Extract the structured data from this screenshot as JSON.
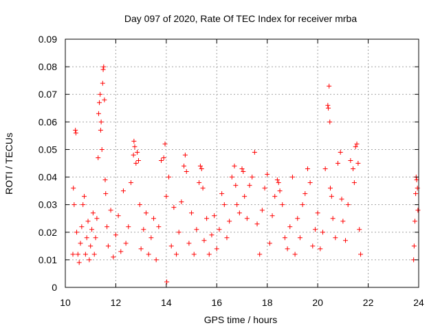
{
  "chart_data": {
    "type": "scatter",
    "title": "Day 097 of 2020, Rate Of TEC Index for receiver mrba",
    "xlabel": "GPS time / hours",
    "ylabel": "ROTI / TECUs",
    "xlim": [
      10,
      24
    ],
    "ylim": [
      0,
      0.09
    ],
    "x_ticks": [
      10,
      12,
      14,
      16,
      18,
      20,
      22,
      24
    ],
    "y_ticks": [
      0,
      0.01,
      0.02,
      0.03,
      0.04,
      0.05,
      0.06,
      0.07,
      0.08,
      0.09
    ],
    "x_tick_labels": [
      "10",
      "12",
      "14",
      "16",
      "18",
      "20",
      "22",
      "24"
    ],
    "y_tick_labels": [
      "0",
      "0.01",
      "0.02",
      "0.03",
      "0.04",
      "0.05",
      "0.06",
      "0.07",
      "0.08",
      "0.09"
    ],
    "grid": true,
    "legend": "none",
    "marker": "plus",
    "color": "#ff0000",
    "series": [
      {
        "points": [
          [
            10.3,
            0.012
          ],
          [
            10.32,
            0.036
          ],
          [
            10.35,
            0.03
          ],
          [
            10.4,
            0.057
          ],
          [
            10.42,
            0.056
          ],
          [
            10.45,
            0.02
          ],
          [
            10.5,
            0.012
          ],
          [
            10.55,
            0.009
          ],
          [
            10.6,
            0.016
          ],
          [
            10.65,
            0.022
          ],
          [
            10.7,
            0.03
          ],
          [
            10.75,
            0.033
          ],
          [
            10.8,
            0.012
          ],
          [
            10.85,
            0.018
          ],
          [
            10.9,
            0.024
          ],
          [
            10.95,
            0.01
          ],
          [
            11.0,
            0.015
          ],
          [
            11.05,
            0.021
          ],
          [
            11.1,
            0.027
          ],
          [
            11.15,
            0.012
          ],
          [
            11.2,
            0.018
          ],
          [
            11.25,
            0.025
          ],
          [
            11.3,
            0.047
          ],
          [
            11.32,
            0.063
          ],
          [
            11.35,
            0.067
          ],
          [
            11.38,
            0.07
          ],
          [
            11.4,
            0.057
          ],
          [
            11.42,
            0.06
          ],
          [
            11.45,
            0.05
          ],
          [
            11.48,
            0.074
          ],
          [
            11.5,
            0.079
          ],
          [
            11.52,
            0.08
          ],
          [
            11.55,
            0.068
          ],
          [
            11.58,
            0.039
          ],
          [
            11.6,
            0.034
          ],
          [
            11.65,
            0.022
          ],
          [
            11.7,
            0.015
          ],
          [
            11.8,
            0.028
          ],
          [
            11.9,
            0.011
          ],
          [
            12.0,
            0.019
          ],
          [
            12.1,
            0.026
          ],
          [
            12.2,
            0.013
          ],
          [
            12.3,
            0.035
          ],
          [
            12.4,
            0.016
          ],
          [
            12.5,
            0.022
          ],
          [
            12.6,
            0.038
          ],
          [
            12.7,
            0.048
          ],
          [
            12.72,
            0.053
          ],
          [
            12.75,
            0.051
          ],
          [
            12.8,
            0.045
          ],
          [
            12.85,
            0.049
          ],
          [
            12.9,
            0.046
          ],
          [
            12.95,
            0.03
          ],
          [
            13.0,
            0.014
          ],
          [
            13.1,
            0.021
          ],
          [
            13.2,
            0.027
          ],
          [
            13.3,
            0.012
          ],
          [
            13.4,
            0.018
          ],
          [
            13.5,
            0.025
          ],
          [
            13.6,
            0.01
          ],
          [
            13.7,
            0.022
          ],
          [
            13.8,
            0.046
          ],
          [
            13.9,
            0.047
          ],
          [
            13.95,
            0.052
          ],
          [
            14.0,
            0.033
          ],
          [
            14.02,
            0.002
          ],
          [
            14.1,
            0.04
          ],
          [
            14.2,
            0.015
          ],
          [
            14.3,
            0.029
          ],
          [
            14.4,
            0.012
          ],
          [
            14.5,
            0.02
          ],
          [
            14.6,
            0.031
          ],
          [
            14.7,
            0.044
          ],
          [
            14.75,
            0.048
          ],
          [
            14.8,
            0.042
          ],
          [
            14.9,
            0.016
          ],
          [
            15.0,
            0.027
          ],
          [
            15.1,
            0.012
          ],
          [
            15.2,
            0.021
          ],
          [
            15.3,
            0.038
          ],
          [
            15.35,
            0.044
          ],
          [
            15.4,
            0.043
          ],
          [
            15.45,
            0.036
          ],
          [
            15.5,
            0.017
          ],
          [
            15.6,
            0.025
          ],
          [
            15.7,
            0.012
          ],
          [
            15.8,
            0.019
          ],
          [
            15.9,
            0.026
          ],
          [
            16.0,
            0.014
          ],
          [
            16.1,
            0.021
          ],
          [
            16.2,
            0.034
          ],
          [
            16.3,
            0.03
          ],
          [
            16.4,
            0.018
          ],
          [
            16.5,
            0.024
          ],
          [
            16.6,
            0.04
          ],
          [
            16.7,
            0.044
          ],
          [
            16.75,
            0.037
          ],
          [
            16.8,
            0.03
          ],
          [
            16.9,
            0.027
          ],
          [
            17.0,
            0.043
          ],
          [
            17.05,
            0.042
          ],
          [
            17.1,
            0.033
          ],
          [
            17.2,
            0.025
          ],
          [
            17.3,
            0.037
          ],
          [
            17.4,
            0.04
          ],
          [
            17.5,
            0.049
          ],
          [
            17.6,
            0.023
          ],
          [
            17.7,
            0.012
          ],
          [
            17.8,
            0.028
          ],
          [
            17.9,
            0.036
          ],
          [
            18.0,
            0.041
          ],
          [
            18.1,
            0.016
          ],
          [
            18.2,
            0.026
          ],
          [
            18.3,
            0.033
          ],
          [
            18.4,
            0.039
          ],
          [
            18.45,
            0.038
          ],
          [
            18.5,
            0.035
          ],
          [
            18.6,
            0.03
          ],
          [
            18.7,
            0.018
          ],
          [
            18.8,
            0.014
          ],
          [
            18.9,
            0.022
          ],
          [
            19.0,
            0.04
          ],
          [
            19.1,
            0.012
          ],
          [
            19.2,
            0.025
          ],
          [
            19.3,
            0.018
          ],
          [
            19.4,
            0.03
          ],
          [
            19.5,
            0.034
          ],
          [
            19.6,
            0.043
          ],
          [
            19.7,
            0.038
          ],
          [
            19.8,
            0.015
          ],
          [
            19.9,
            0.021
          ],
          [
            20.0,
            0.027
          ],
          [
            20.1,
            0.014
          ],
          [
            20.2,
            0.02
          ],
          [
            20.3,
            0.043
          ],
          [
            20.4,
            0.066
          ],
          [
            20.42,
            0.065
          ],
          [
            20.45,
            0.073
          ],
          [
            20.48,
            0.06
          ],
          [
            20.5,
            0.036
          ],
          [
            20.55,
            0.033
          ],
          [
            20.6,
            0.025
          ],
          [
            20.7,
            0.018
          ],
          [
            20.8,
            0.045
          ],
          [
            20.9,
            0.049
          ],
          [
            20.95,
            0.032
          ],
          [
            21.0,
            0.024
          ],
          [
            21.1,
            0.017
          ],
          [
            21.2,
            0.03
          ],
          [
            21.3,
            0.046
          ],
          [
            21.4,
            0.043
          ],
          [
            21.45,
            0.038
          ],
          [
            21.5,
            0.051
          ],
          [
            21.55,
            0.052
          ],
          [
            21.6,
            0.045
          ],
          [
            21.65,
            0.021
          ],
          [
            21.7,
            0.012
          ],
          [
            23.8,
            0.01
          ],
          [
            23.82,
            0.015
          ],
          [
            23.85,
            0.024
          ],
          [
            23.88,
            0.034
          ],
          [
            23.9,
            0.04
          ],
          [
            23.92,
            0.039
          ],
          [
            23.95,
            0.036
          ],
          [
            23.97,
            0.028
          ]
        ]
      }
    ]
  }
}
